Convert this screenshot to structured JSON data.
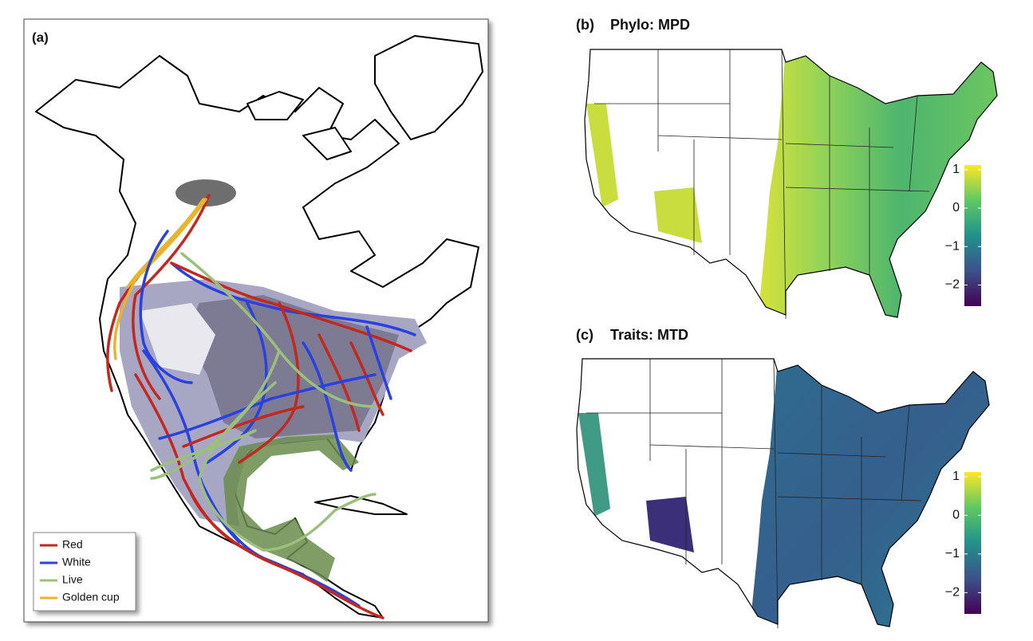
{
  "panels": [
    {
      "label": "(a)"
    },
    {
      "label": "(b)",
      "title": "Phylo: MPD"
    },
    {
      "label": "(c)",
      "title": "Traits: MTD"
    }
  ],
  "legend": [
    {
      "name": "Red",
      "color": "#c3281f"
    },
    {
      "name": "White",
      "color": "#2b40e0"
    },
    {
      "name": "Live",
      "color": "#9cc07c"
    },
    {
      "name": "Golden cup",
      "color": "#e8b42e"
    }
  ],
  "colorbars": [
    {
      "clim": [
        -2.55,
        1.12
      ],
      "ticks": [
        {
          "value": 1,
          "label": "1"
        },
        {
          "value": 0,
          "label": "0"
        },
        {
          "value": -1,
          "label": "−1"
        },
        {
          "value": -2,
          "label": "−2"
        }
      ]
    },
    {
      "clim": [
        -2.55,
        1.12
      ],
      "ticks": [
        {
          "value": 1,
          "label": "1"
        },
        {
          "value": 0,
          "label": "0"
        },
        {
          "value": -1,
          "label": "−1"
        },
        {
          "value": -2,
          "label": "−2"
        }
      ]
    }
  ]
}
